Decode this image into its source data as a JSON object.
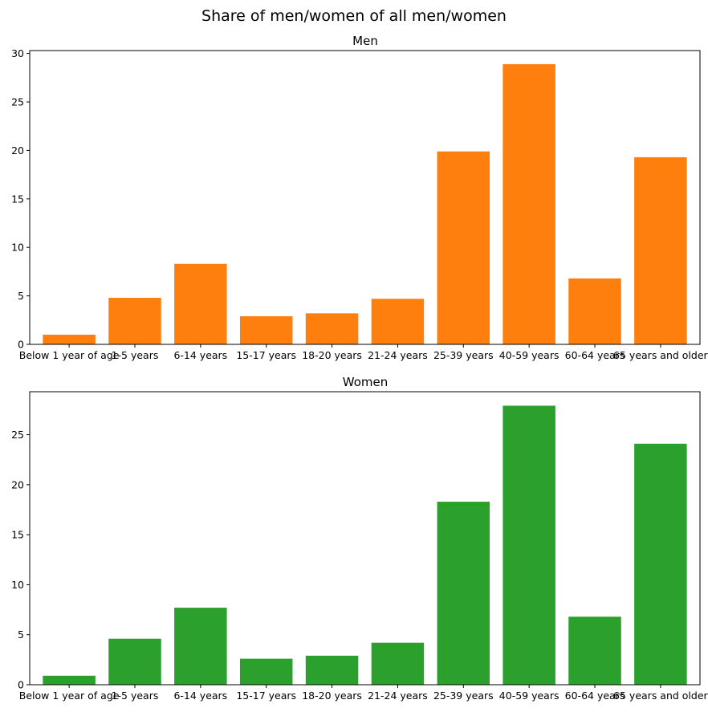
{
  "figure": {
    "title": "Share of men/women of all men/women"
  },
  "chart_data": [
    {
      "type": "bar",
      "title": "Men",
      "xlabel": "",
      "ylabel": "",
      "color": "#ff7f0e",
      "categories": [
        "Below 1 year of age",
        "1-5 years",
        "6-14 years",
        "15-17 years",
        "18-20 years",
        "21-24 years",
        "25-39 years",
        "40-59 years",
        "60-64 years",
        "65 years and older"
      ],
      "values": [
        1.0,
        4.8,
        8.3,
        2.9,
        3.2,
        4.7,
        19.9,
        28.9,
        6.8,
        19.3
      ],
      "ylim": [
        0,
        30.3
      ],
      "yticks": [
        0,
        5,
        10,
        15,
        20,
        25,
        30
      ],
      "grid": false
    },
    {
      "type": "bar",
      "title": "Women",
      "xlabel": "",
      "ylabel": "",
      "color": "#2ca02c",
      "categories": [
        "Below 1 year of age",
        "1-5 years",
        "6-14 years",
        "15-17 years",
        "18-20 years",
        "21-24 years",
        "25-39 years",
        "40-59 years",
        "60-64 years",
        "65 years and older"
      ],
      "values": [
        0.9,
        4.6,
        7.7,
        2.6,
        2.9,
        4.2,
        18.3,
        27.9,
        6.8,
        24.1
      ],
      "ylim": [
        0,
        29.3
      ],
      "yticks": [
        0,
        5,
        10,
        15,
        20,
        25
      ],
      "grid": false
    }
  ]
}
